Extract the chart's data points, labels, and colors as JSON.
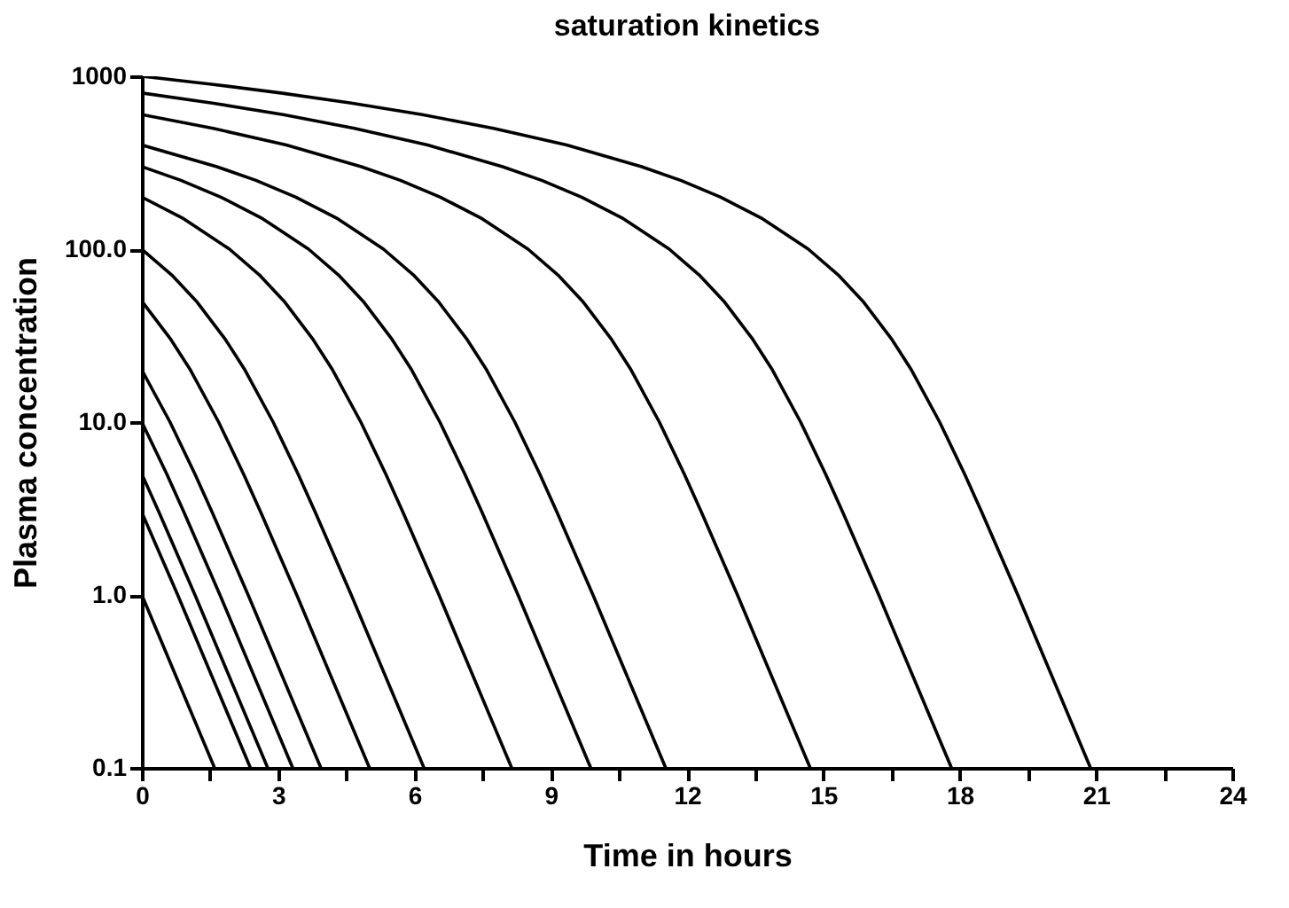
{
  "chart_data": {
    "type": "line",
    "title": "saturation kinetics",
    "xlabel": "Time in hours",
    "ylabel": "Plasma concentration",
    "log": "y",
    "ylim": [
      0.1,
      1000
    ],
    "yticks": [
      0.1,
      {
        "value": 1,
        "label": "1.0"
      },
      {
        "value": 10,
        "label": "10.0"
      },
      {
        "value": 100,
        "label": "100.0"
      },
      1000
    ],
    "xlim": [
      0,
      24
    ],
    "xticks": [
      0,
      {
        "value": 1.5,
        "label": null
      },
      3,
      {
        "value": 4.5,
        "label": null
      },
      6,
      {
        "value": 7.5,
        "label": null
      },
      9,
      {
        "value": 10.5,
        "label": null
      },
      12,
      {
        "value": 13.5,
        "label": null
      },
      15,
      {
        "value": 16.5,
        "label": null
      },
      18,
      {
        "value": 19.5,
        "label": null
      },
      21,
      {
        "value": 22.5,
        "label": null
      },
      24
    ],
    "grid": false,
    "legend": false,
    "marker": "none",
    "line_style": "solid",
    "series": [
      {
        "color": "#000000",
        "x": [
          0,
          1.53,
          3.06,
          4.61,
          6.17,
          7.74,
          9.35,
          11.0,
          11.86,
          12.74,
          13.66,
          14.67,
          15.35,
          15.87,
          16.51,
          16.94,
          17.56,
          18.11,
          18.49,
          19.28,
          20.88
        ],
        "values": [
          1000,
          900,
          800,
          700,
          600,
          500,
          400,
          300,
          250,
          200,
          150,
          100,
          70,
          50,
          30,
          20,
          10,
          5,
          3,
          1,
          0.1
        ]
      },
      {
        "color": "#000000",
        "x": [
          0,
          1.55,
          3.11,
          4.68,
          6.29,
          7.94,
          8.8,
          9.68,
          10.6,
          11.61,
          12.29,
          12.81,
          13.45,
          13.88,
          14.5,
          15.05,
          15.43,
          16.22,
          17.82
        ],
        "values": [
          800,
          700,
          600,
          500,
          400,
          300,
          250,
          200,
          150,
          100,
          70,
          50,
          30,
          20,
          10,
          5,
          3,
          1,
          0.1
        ]
      },
      {
        "color": "#000000",
        "x": [
          0,
          1.57,
          3.18,
          4.83,
          5.69,
          6.57,
          7.49,
          8.5,
          9.18,
          9.7,
          10.34,
          10.77,
          11.39,
          11.94,
          12.32,
          13.11,
          14.71
        ],
        "values": [
          600,
          500,
          400,
          300,
          250,
          200,
          150,
          100,
          70,
          50,
          30,
          20,
          10,
          5,
          3,
          1,
          0.1
        ]
      },
      {
        "color": "#000000",
        "x": [
          0,
          1.65,
          2.51,
          3.39,
          4.31,
          5.32,
          6.0,
          6.52,
          7.16,
          7.59,
          8.21,
          8.76,
          9.14,
          9.93,
          11.53
        ],
        "values": [
          400,
          300,
          250,
          200,
          150,
          100,
          70,
          50,
          30,
          20,
          10,
          5,
          3,
          1,
          0.1
        ]
      },
      {
        "color": "#000000",
        "x": [
          0,
          0.86,
          1.74,
          2.66,
          3.67,
          4.35,
          4.87,
          5.51,
          5.94,
          6.56,
          7.11,
          7.49,
          8.28,
          9.88
        ],
        "values": [
          300,
          250,
          200,
          150,
          100,
          70,
          50,
          30,
          20,
          10,
          5,
          3,
          1,
          0.1
        ]
      },
      {
        "color": "#000000",
        "x": [
          0,
          0.92,
          1.93,
          2.61,
          3.13,
          3.77,
          4.2,
          4.82,
          5.37,
          5.75,
          6.54,
          8.14
        ],
        "values": [
          200,
          150,
          100,
          70,
          50,
          30,
          20,
          10,
          5,
          3,
          1,
          0.1
        ]
      },
      {
        "color": "#000000",
        "x": [
          0,
          0.68,
          1.2,
          1.84,
          2.27,
          2.89,
          3.44,
          3.82,
          4.61,
          6.21
        ],
        "values": [
          100,
          70,
          50,
          30,
          20,
          10,
          5,
          3,
          1,
          0.1
        ]
      },
      {
        "color": "#000000",
        "x": [
          0,
          0.64,
          1.07,
          1.69,
          2.24,
          2.62,
          3.41,
          5.01
        ],
        "values": [
          50,
          30,
          20,
          10,
          5,
          3,
          1,
          0.1
        ]
      },
      {
        "color": "#000000",
        "x": [
          0,
          0.62,
          1.17,
          1.55,
          2.34,
          3.94
        ],
        "values": [
          20,
          10,
          5,
          3,
          1,
          0.1
        ]
      },
      {
        "color": "#000000",
        "x": [
          0,
          0.55,
          0.93,
          1.72,
          3.32
        ],
        "values": [
          10,
          5,
          3,
          1,
          0.1
        ]
      },
      {
        "color": "#000000",
        "x": [
          0,
          0.38,
          1.17,
          2.77
        ],
        "values": [
          5,
          3,
          1,
          0.1
        ]
      },
      {
        "color": "#000000",
        "x": [
          0,
          0.79,
          2.39
        ],
        "values": [
          3,
          1,
          0.1
        ]
      },
      {
        "color": "#000000",
        "x": [
          0,
          1.6
        ],
        "values": [
          1,
          0.1
        ]
      }
    ]
  }
}
